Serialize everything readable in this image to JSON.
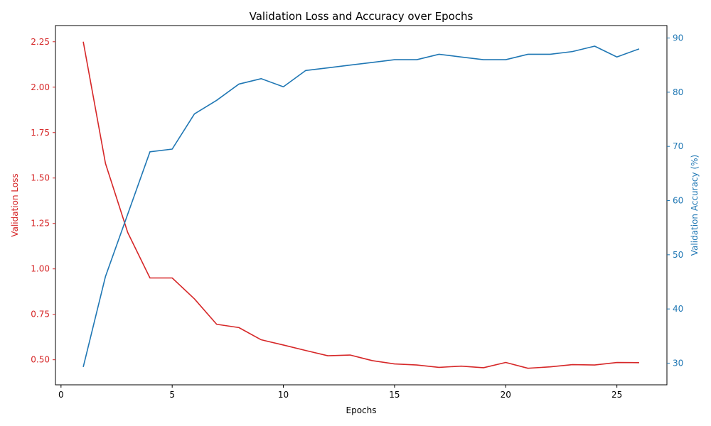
{
  "chart_data": {
    "type": "line",
    "title": "Validation Loss and Accuracy over Epochs",
    "xlabel": "Epochs",
    "ylabel_left": "Validation Loss",
    "ylabel_right": "Validation Accuracy (%)",
    "xlim": [
      -0.25,
      27.25
    ],
    "ylim_left": [
      0.362,
      2.339
    ],
    "ylim_right": [
      26.0,
      92.3
    ],
    "x_ticks": [
      0,
      5,
      10,
      15,
      20,
      25
    ],
    "y_left_ticks": [
      0.5,
      0.75,
      1.0,
      1.25,
      1.5,
      1.75,
      2.0,
      2.25
    ],
    "y_left_tick_labels": [
      "0.50",
      "0.75",
      "1.00",
      "1.25",
      "1.50",
      "1.75",
      "2.00",
      "2.25"
    ],
    "y_right_ticks": [
      30,
      40,
      50,
      60,
      70,
      80,
      90
    ],
    "grid": false,
    "legend": "none",
    "x": [
      1,
      2,
      3,
      4,
      5,
      6,
      7,
      8,
      9,
      10,
      11,
      12,
      13,
      14,
      15,
      16,
      17,
      18,
      19,
      20,
      21,
      22,
      23,
      24,
      25,
      26
    ],
    "series": [
      {
        "axis": "left",
        "color": "#d62728",
        "values": [
          2.25,
          1.58,
          1.2,
          0.95,
          0.95,
          0.835,
          0.695,
          0.677,
          0.61,
          0.581,
          0.551,
          0.522,
          0.526,
          0.495,
          0.477,
          0.471,
          0.458,
          0.465,
          0.456,
          0.485,
          0.453,
          0.461,
          0.473,
          0.471,
          0.485,
          0.484
        ]
      },
      {
        "axis": "right",
        "color": "#1f77b4",
        "values": [
          29.3,
          46.0,
          57.5,
          69.0,
          69.5,
          76.0,
          78.5,
          81.5,
          82.5,
          81.0,
          84.0,
          84.5,
          85.0,
          85.5,
          86.0,
          86.0,
          87.0,
          86.5,
          86.0,
          86.0,
          87.0,
          87.0,
          87.5,
          88.5,
          86.5,
          88.0
        ]
      }
    ]
  }
}
